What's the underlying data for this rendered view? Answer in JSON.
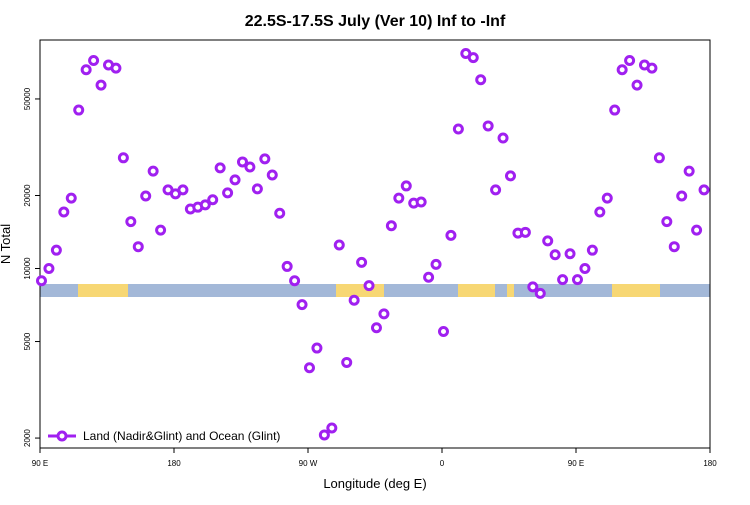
{
  "chart_data": {
    "type": "scatter",
    "title": "22.5S-17.5S July (Ver 10)   Inf to -Inf",
    "xlabel": "Longitude (deg E)",
    "ylabel": "N Total",
    "log_y": true,
    "legend": "bottom left",
    "xlim": [
      90,
      540
    ],
    "ylim": [
      1820,
      87500
    ],
    "xticks": [
      {
        "value": 90,
        "label": "90 E"
      },
      {
        "value": 180,
        "label": "180"
      },
      {
        "value": 270,
        "label": "90 W"
      },
      {
        "value": 360,
        "label": "0"
      },
      {
        "value": 450,
        "label": "90 E"
      },
      {
        "value": 540,
        "label": "180"
      }
    ],
    "yticks": [
      2000,
      5000,
      10000,
      20000,
      50000
    ],
    "series": [
      {
        "name": "Land (Nadir&Glint) and Ocean (Glint)",
        "color": "#a020f0",
        "x": [
          91,
          96,
          101,
          106,
          111,
          116,
          121,
          126,
          131,
          136,
          141,
          146,
          151,
          156,
          161,
          166,
          171,
          176,
          181,
          186,
          191,
          196,
          201,
          206,
          211,
          216,
          221,
          226,
          231,
          236,
          241,
          246,
          251,
          256,
          261,
          266,
          271,
          276,
          281,
          286,
          291,
          296,
          301,
          306,
          311,
          316,
          321,
          326,
          331,
          336,
          341,
          346,
          351,
          356,
          361,
          366,
          371,
          376,
          381,
          386,
          391,
          396,
          401,
          406,
          411,
          416,
          421,
          426,
          431,
          436,
          441,
          446,
          451,
          456,
          461,
          466,
          471,
          476,
          481,
          486,
          491,
          496,
          501,
          506,
          511,
          516,
          521,
          526,
          531,
          536
        ],
        "values": [
          8900,
          10000,
          11900,
          17100,
          19500,
          45000,
          66000,
          72000,
          57000,
          69000,
          67000,
          28600,
          15600,
          12300,
          19900,
          25200,
          14400,
          21100,
          20300,
          21100,
          17600,
          17900,
          18300,
          19200,
          26000,
          20500,
          23200,
          27500,
          26200,
          21300,
          28300,
          24300,
          16900,
          10200,
          8900,
          7100,
          3900,
          4700,
          2060,
          2200,
          12500,
          4100,
          7400,
          10600,
          8500,
          5700,
          6500,
          15000,
          19500,
          21900,
          18600,
          18800,
          9200,
          10400,
          5500,
          13700,
          37600,
          77000,
          74000,
          60000,
          38700,
          21100,
          34500,
          24100,
          14000,
          14100,
          8400,
          7900,
          13000,
          11400,
          9000,
          11500,
          9000,
          10000,
          11900,
          17100,
          19500,
          45000,
          66000,
          72000,
          57000,
          69000,
          67000,
          28600,
          15600,
          12300,
          19900,
          25200,
          14400,
          21100
        ]
      }
    ]
  }
}
